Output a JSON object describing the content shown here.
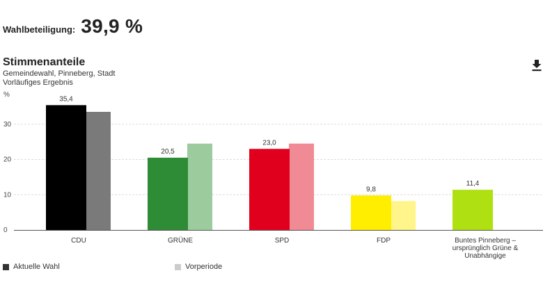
{
  "turnout": {
    "label": "Wahlbeteiligung:",
    "value": "39,9 %"
  },
  "header": {
    "title": "Stimmenanteile",
    "subtitle_line1": "Gemeindewahl, Pinneberg, Stadt",
    "subtitle_line2": "Vorläufiges Ergebnis",
    "download_icon": "download-icon"
  },
  "legend": {
    "current": "Aktuelle Wahl",
    "previous": "Vorperiode",
    "current_color": "#333333",
    "previous_color": "#cccccc"
  },
  "chart_data": {
    "type": "bar",
    "ylabel": "%",
    "ylim": [
      0,
      40
    ],
    "yticks": [
      0,
      10,
      20,
      30
    ],
    "grid": true,
    "categories": [
      {
        "label_lines": [
          "CDU"
        ],
        "current": 35.4,
        "current_label": "35,4",
        "previous": 33.5,
        "current_color": "#000000",
        "previous_color": "#7a7a7a"
      },
      {
        "label_lines": [
          "GRÜNE"
        ],
        "current": 20.5,
        "current_label": "20,5",
        "previous": 24.5,
        "current_color": "#2e8b36",
        "previous_color": "#9ccc9e"
      },
      {
        "label_lines": [
          "SPD"
        ],
        "current": 23.0,
        "current_label": "23,0",
        "previous": 24.5,
        "current_color": "#e0001e",
        "previous_color": "#f08a94"
      },
      {
        "label_lines": [
          "FDP"
        ],
        "current": 9.8,
        "current_label": "9,8",
        "previous": 8.2,
        "current_color": "#ffee00",
        "previous_color": "#fff58a"
      },
      {
        "label_lines": [
          "Buntes Pinneberg –",
          "ursprünglich Grüne &",
          "Unabhängige"
        ],
        "current": 11.4,
        "current_label": "11,4",
        "previous": null,
        "current_color": "#aee012",
        "previous_color": "#d6f08a"
      }
    ]
  }
}
